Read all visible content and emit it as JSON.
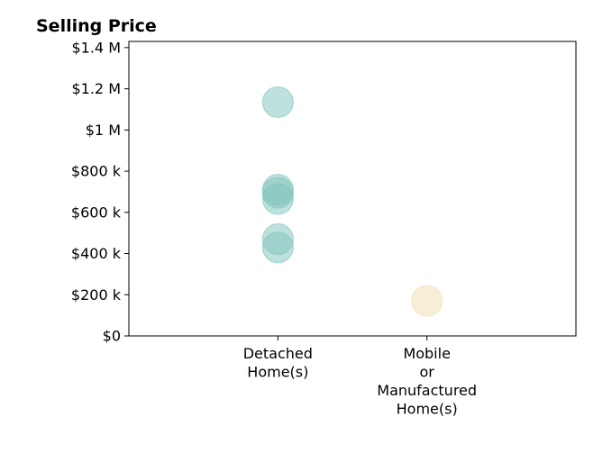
{
  "chart_data": {
    "type": "scatter",
    "title": "Selling Price",
    "xlabel": "",
    "ylabel": "",
    "categories": [
      "Detached\nHome(s)",
      "Mobile\nor\nManufactured\nHome(s)"
    ],
    "yticks": [
      {
        "value": 0,
        "label": "$0"
      },
      {
        "value": 200000,
        "label": "$200 k"
      },
      {
        "value": 400000,
        "label": "$400 k"
      },
      {
        "value": 600000,
        "label": "$600 k"
      },
      {
        "value": 800000,
        "label": "$800 k"
      },
      {
        "value": 1000000,
        "label": "$1 M"
      },
      {
        "value": 1200000,
        "label": "$1.2 M"
      },
      {
        "value": 1400000,
        "label": "$1.4 M"
      }
    ],
    "ylim": [
      0,
      1430000
    ],
    "xlim": [
      -1,
      2
    ],
    "grid": false,
    "points": [
      {
        "category": 0,
        "value": 1135000,
        "color": "#7fc4bb"
      },
      {
        "category": 0,
        "value": 710000,
        "color": "#7fc4bb"
      },
      {
        "category": 0,
        "value": 695000,
        "color": "#7fc4bb"
      },
      {
        "category": 0,
        "value": 665000,
        "color": "#7fc4bb"
      },
      {
        "category": 0,
        "value": 470000,
        "color": "#7fc4bb"
      },
      {
        "category": 0,
        "value": 430000,
        "color": "#7fc4bb"
      },
      {
        "category": 1,
        "value": 170000,
        "color": "#f2deb0"
      }
    ]
  }
}
